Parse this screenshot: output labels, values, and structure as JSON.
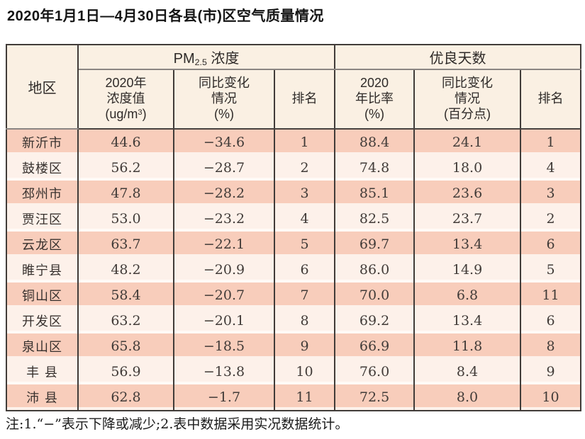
{
  "page": {
    "title": "2020年1月1日—4月30日各县(市)区空气质量情况",
    "note": "注:1.“−”表示下降或减少;2.表中数据采用实况数据统计。"
  },
  "table": {
    "header": {
      "region": "地区",
      "pm25_group": {
        "prefix": "PM",
        "sub": "2.5",
        "suffix": " 浓度"
      },
      "good_days_group": "优良天数",
      "concentration": {
        "lines": "2020年\n浓度值",
        "unit_pre": "(ug/m",
        "unit_sup": "3",
        "unit_post": ")"
      },
      "pm25_change": "同比变化\n情况\n(%)",
      "pm25_rank": "排名",
      "good_ratio": "2020\n年比率\n(%)",
      "good_change": "同比变化\n情况\n(百分点)",
      "good_rank": "排名"
    },
    "rows": [
      {
        "region": "新沂市",
        "cells": [
          "44.6",
          "−34.6",
          "1",
          "88.4",
          "24.1",
          "1"
        ]
      },
      {
        "region": "鼓楼区",
        "cells": [
          "56.2",
          "−28.7",
          "2",
          "74.8",
          "18.0",
          "4"
        ]
      },
      {
        "region": "邳州市",
        "cells": [
          "47.8",
          "−28.2",
          "3",
          "85.1",
          "23.6",
          "3"
        ]
      },
      {
        "region": "贾汪区",
        "cells": [
          "53.0",
          "−23.2",
          "4",
          "82.5",
          "23.7",
          "2"
        ]
      },
      {
        "region": "云龙区",
        "cells": [
          "63.7",
          "−22.1",
          "5",
          "69.7",
          "13.4",
          "6"
        ]
      },
      {
        "region": "睢宁县",
        "cells": [
          "48.2",
          "−20.9",
          "6",
          "86.0",
          "14.9",
          "5"
        ]
      },
      {
        "region": "铜山区",
        "cells": [
          "58.4",
          "−20.7",
          "7",
          "70.0",
          "6.8",
          "11"
        ]
      },
      {
        "region": "开发区",
        "cells": [
          "63.2",
          "−20.1",
          "8",
          "69.2",
          "13.4",
          "6"
        ]
      },
      {
        "region": "泉山区",
        "cells": [
          "65.8",
          "−18.5",
          "9",
          "66.9",
          "11.8",
          "8"
        ]
      },
      {
        "region": "丰 县",
        "cells": [
          "56.9",
          "−13.8",
          "10",
          "76.0",
          "8.4",
          "9"
        ]
      },
      {
        "region": "沛 县",
        "cells": [
          "62.8",
          "−1.7",
          "11",
          "72.5",
          "8.0",
          "10"
        ]
      }
    ]
  },
  "chart_data": {
    "type": "table",
    "title": "2020年1月1日—4月30日各县(市)区空气质量情况",
    "columns": [
      "地区",
      "PM2.5浓度 2020年浓度值(ug/m3)",
      "PM2.5浓度 同比变化情况(%)",
      "PM2.5浓度 排名",
      "优良天数 2020年比率(%)",
      "优良天数 同比变化情况(百分点)",
      "优良天数 排名"
    ],
    "rows": [
      [
        "新沂市",
        44.6,
        -34.6,
        1,
        88.4,
        24.1,
        1
      ],
      [
        "鼓楼区",
        56.2,
        -28.7,
        2,
        74.8,
        18.0,
        4
      ],
      [
        "邳州市",
        47.8,
        -28.2,
        3,
        85.1,
        23.6,
        3
      ],
      [
        "贾汪区",
        53.0,
        -23.2,
        4,
        82.5,
        23.7,
        2
      ],
      [
        "云龙区",
        63.7,
        -22.1,
        5,
        69.7,
        13.4,
        6
      ],
      [
        "睢宁县",
        48.2,
        -20.9,
        6,
        86.0,
        14.9,
        5
      ],
      [
        "铜山区",
        58.4,
        -20.7,
        7,
        70.0,
        6.8,
        11
      ],
      [
        "开发区",
        63.2,
        -20.1,
        8,
        69.2,
        13.4,
        6
      ],
      [
        "泉山区",
        65.8,
        -18.5,
        9,
        66.9,
        11.8,
        8
      ],
      [
        "丰县",
        56.9,
        -13.8,
        10,
        76.0,
        8.4,
        9
      ],
      [
        "沛县",
        62.8,
        -1.7,
        11,
        72.5,
        8.0,
        10
      ]
    ]
  },
  "colors": {
    "stripe_dark": "#f8cdbb",
    "stripe_light": "#fdf1ea",
    "header_bg": "#faf0e3",
    "border_dark": "#413c39",
    "header_underline": "#8b8683"
  }
}
